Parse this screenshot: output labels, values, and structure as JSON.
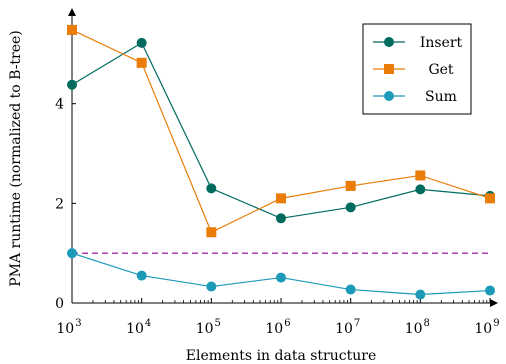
{
  "chart_data": {
    "type": "line",
    "xlabel": "Elements in data structure",
    "ylabel": "PMA runtime (normalized to B-tree)",
    "x_scale": "log10",
    "x": [
      1000,
      10000,
      100000,
      1000000,
      10000000,
      100000000,
      1000000000
    ],
    "x_tick_labels": [
      {
        "base": "10",
        "exp": "3"
      },
      {
        "base": "10",
        "exp": "4"
      },
      {
        "base": "10",
        "exp": "5"
      },
      {
        "base": "10",
        "exp": "6"
      },
      {
        "base": "10",
        "exp": "7"
      },
      {
        "base": "10",
        "exp": "8"
      },
      {
        "base": "10",
        "exp": "9"
      }
    ],
    "y_ticks": [
      0,
      2,
      4
    ],
    "y_tick_labels": [
      "0",
      "2",
      "4"
    ],
    "xlim": [
      1000,
      1000000000
    ],
    "ylim": [
      0,
      5.8
    ],
    "grid": false,
    "legend_position": "top-right",
    "series": [
      {
        "name": "Insert",
        "color": "#006b5f",
        "marker": "circle",
        "values": [
          4.38,
          5.22,
          2.3,
          1.7,
          1.92,
          2.28,
          2.15
        ]
      },
      {
        "name": "Get",
        "color": "#e97d08",
        "marker": "square",
        "values": [
          5.48,
          4.82,
          1.42,
          2.1,
          2.35,
          2.56,
          2.1
        ]
      },
      {
        "name": "Sum",
        "color": "#1c9ab8",
        "marker": "circle",
        "values": [
          1.0,
          0.55,
          0.33,
          0.51,
          0.27,
          0.17,
          0.25
        ]
      }
    ],
    "reference_line": {
      "y": 1,
      "color": "#9b009b",
      "style": "dashed"
    }
  }
}
